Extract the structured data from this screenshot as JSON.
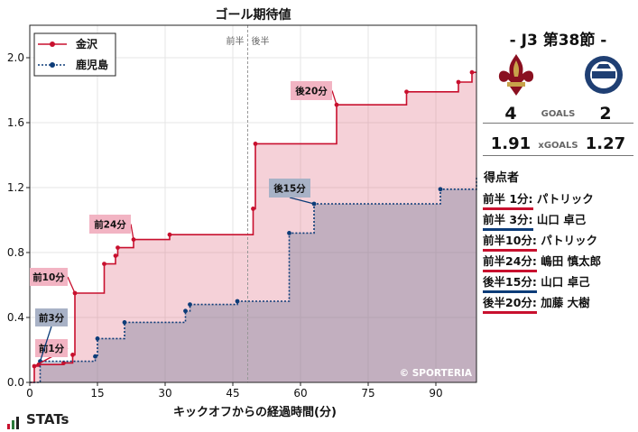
{
  "chart_data": {
    "type": "line",
    "title": "ゴール期待値",
    "xlabel": "キックオフからの経過時間(分)",
    "ylabel": "",
    "xlim": [
      0,
      99
    ],
    "ylim": [
      0,
      2.2
    ],
    "x_ticks": [
      "0",
      "15",
      "30",
      "45",
      "60",
      "75",
      "90"
    ],
    "y_ticks": [
      "0.0",
      "0.4",
      "0.8",
      "1.2",
      "1.6",
      "2.0"
    ],
    "half_labels": {
      "first": "前半",
      "second": "後半"
    },
    "halftime_minute": 48.3,
    "watermark": "© SPORTERIA",
    "legend_position": "top-left",
    "series": [
      {
        "name": "金沢",
        "color": "#c8102e",
        "fill": "rgba(214,70,100,0.25)",
        "x": [
          0,
          1,
          2,
          7.5,
          9.5,
          10,
          16.5,
          19,
          19.5,
          23,
          31,
          49.5,
          50,
          68,
          83.5,
          95,
          98,
          99
        ],
        "y": [
          0,
          0.1,
          0.11,
          0.12,
          0.17,
          0.55,
          0.73,
          0.78,
          0.83,
          0.88,
          0.91,
          1.07,
          1.47,
          1.71,
          1.79,
          1.85,
          1.91,
          1.91
        ]
      },
      {
        "name": "鹿児島",
        "color": "#0c3c78",
        "fill": "rgba(110,120,150,0.38)",
        "x": [
          0,
          2.3,
          14.5,
          15,
          21,
          34.5,
          35.5,
          46,
          57.5,
          63,
          91,
          99
        ],
        "y": [
          0,
          0.13,
          0.16,
          0.27,
          0.37,
          0.44,
          0.48,
          0.5,
          0.92,
          1.1,
          1.19,
          1.27
        ]
      }
    ],
    "annotations": [
      {
        "label": "前1分",
        "team": "home",
        "x": 1,
        "y": 0.1
      },
      {
        "label": "前3分",
        "team": "away",
        "x": 2.3,
        "y": 0.13
      },
      {
        "label": "前10分",
        "team": "home",
        "x": 10,
        "y": 0.55
      },
      {
        "label": "前24分",
        "team": "home",
        "x": 23,
        "y": 0.88
      },
      {
        "label": "後15分",
        "team": "away",
        "x": 63,
        "y": 1.1
      },
      {
        "label": "後20分",
        "team": "home",
        "x": 68,
        "y": 1.71
      }
    ]
  },
  "match": {
    "title": "- J3 第38節 -",
    "home_logo": "kanazawa-fleur-de-lis-crest",
    "away_logo": "kagoshima-united-fc-emblem",
    "goals": {
      "home": "4",
      "label": "GOALS",
      "away": "2"
    },
    "xgoals": {
      "home": "1.91",
      "label": "xGOALS",
      "away": "1.27"
    }
  },
  "scorers": {
    "title": "得点者",
    "list": [
      {
        "time": "前半 1分:",
        "name": "パトリック",
        "team": "home"
      },
      {
        "time": "前半 3分:",
        "name": "山口 卓己",
        "team": "away"
      },
      {
        "time": "前半10分:",
        "name": "パトリック",
        "team": "home"
      },
      {
        "time": "前半24分:",
        "name": "嶋田 慎太郎",
        "team": "home"
      },
      {
        "time": "後半15分:",
        "name": "山口 卓己",
        "team": "away"
      },
      {
        "time": "後半20分:",
        "name": "加藤 大樹",
        "team": "home"
      }
    ]
  },
  "brand": "STATs",
  "colors": {
    "home": "#c8102e",
    "away": "#0c3c78"
  }
}
